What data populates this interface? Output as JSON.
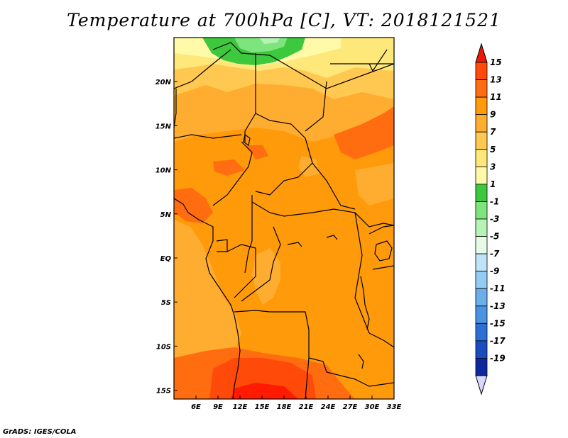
{
  "title": "Temperature at 700hPa [C], VT: 2018121521",
  "footer": "GrADS: IGES/COLA",
  "map": {
    "lon_range": [
      3,
      33
    ],
    "lat_range": [
      -16,
      25
    ],
    "lon_ticks": [
      {
        "value": 6,
        "label": "6E"
      },
      {
        "value": 9,
        "label": "9E"
      },
      {
        "value": 12,
        "label": "12E"
      },
      {
        "value": 15,
        "label": "15E"
      },
      {
        "value": 18,
        "label": "18E"
      },
      {
        "value": 21,
        "label": "21E"
      },
      {
        "value": 24,
        "label": "24E"
      },
      {
        "value": 27,
        "label": "27E"
      },
      {
        "value": 30,
        "label": "30E"
      },
      {
        "value": 33,
        "label": "33E"
      }
    ],
    "lat_ticks": [
      {
        "value": 20,
        "label": "20N"
      },
      {
        "value": 15,
        "label": "15N"
      },
      {
        "value": 10,
        "label": "10N"
      },
      {
        "value": 5,
        "label": "5N"
      },
      {
        "value": 0,
        "label": "EQ"
      },
      {
        "value": -5,
        "label": "5S"
      },
      {
        "value": -10,
        "label": "10S"
      },
      {
        "value": -15,
        "label": "15S"
      }
    ]
  },
  "colorbar": {
    "labels": [
      "15",
      "13",
      "11",
      "9",
      "7",
      "5",
      "3",
      "1",
      "-1",
      "-3",
      "-5",
      "-7",
      "-9",
      "-11",
      "-13",
      "-15",
      "-17",
      "-19"
    ],
    "colors": [
      "#ff1a00",
      "#ff4a0a",
      "#ff6d10",
      "#ff9a0a",
      "#ffad30",
      "#ffc850",
      "#ffe87a",
      "#fffaa8",
      "#3dc83d",
      "#7ee57e",
      "#b7f2b7",
      "#e6fae6",
      "#bfe4f8",
      "#93cbf2",
      "#6aaeea",
      "#4a92e2",
      "#2c70d6",
      "#1a4cbf",
      "#0c2a9e",
      "#05107a"
    ],
    "top_arrow": "#e8180a",
    "bottom_arrow": "#d8d8ff"
  }
}
